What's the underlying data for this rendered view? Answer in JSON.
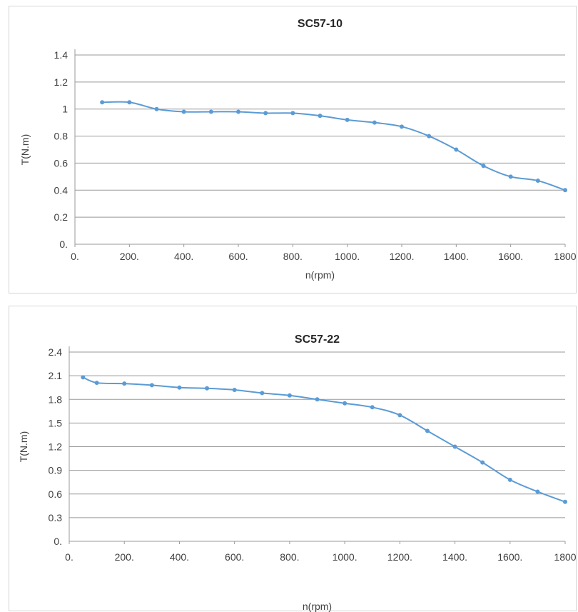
{
  "chart_data": [
    {
      "type": "line",
      "title": "SC57-10",
      "xlabel": "n(rpm)",
      "ylabel": "T(N.m)",
      "xlim": [
        0,
        1800
      ],
      "ylim": [
        0,
        1.4
      ],
      "grid": true,
      "x_ticks": [
        "0.",
        "200.",
        "400.",
        "600.",
        "800.",
        "1000.",
        "1200.",
        "1400.",
        "1600.",
        "1800"
      ],
      "y_ticks": [
        "0.",
        "0.2",
        "0.4",
        "0.6",
        "0.8",
        "1",
        "1.2",
        "1.4"
      ],
      "series": [
        {
          "x": [
            100,
            200,
            300,
            400,
            500,
            600,
            700,
            800,
            900,
            1000,
            1100,
            1200,
            1300,
            1400,
            1500,
            1600,
            1700,
            1800
          ],
          "y": [
            1.05,
            1.05,
            1.0,
            0.98,
            0.98,
            0.98,
            0.97,
            0.97,
            0.95,
            0.92,
            0.9,
            0.87,
            0.8,
            0.7,
            0.58,
            0.5,
            0.47,
            0.4
          ],
          "color": "#5b9bd5"
        }
      ]
    },
    {
      "type": "line",
      "title": "SC57-22",
      "xlabel": "n(rpm)",
      "ylabel": "T(N.m)",
      "xlim": [
        0,
        1800
      ],
      "ylim": [
        0,
        2.4
      ],
      "grid": true,
      "x_ticks": [
        "0.",
        "200.",
        "400.",
        "600.",
        "800.",
        "1000.",
        "1200.",
        "1400.",
        "1600.",
        "1800"
      ],
      "y_ticks": [
        "0.",
        "0.3",
        "0.6",
        "0.9",
        "1.2",
        "1.5",
        "1.8",
        "2.1",
        "2.4"
      ],
      "series": [
        {
          "x": [
            50,
            100,
            200,
            300,
            400,
            500,
            600,
            700,
            800,
            900,
            1000,
            1100,
            1200,
            1300,
            1400,
            1500,
            1600,
            1700,
            1800
          ],
          "y": [
            2.08,
            2.01,
            2.0,
            1.98,
            1.95,
            1.94,
            1.92,
            1.88,
            1.85,
            1.8,
            1.75,
            1.7,
            1.6,
            1.4,
            1.2,
            1.0,
            0.78,
            0.63,
            0.5
          ],
          "color": "#5b9bd5"
        }
      ]
    }
  ]
}
